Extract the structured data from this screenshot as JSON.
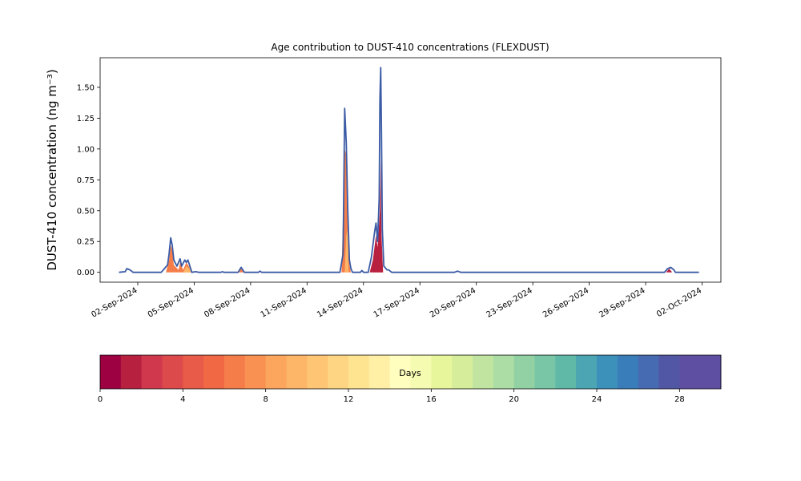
{
  "chart_data": {
    "type": "area",
    "title": "Age contribution to DUST-410 concentrations (FLEXDUST)",
    "ylabel": "DUST-410 concentration (ng m⁻³)",
    "xlabel": "",
    "ylim": [
      -0.08,
      1.74
    ],
    "y_ticks": [
      "0.00",
      "0.25",
      "0.50",
      "0.75",
      "1.00",
      "1.25",
      "1.50"
    ],
    "x_ticks": [
      "02-Sep-2024",
      "05-Sep-2024",
      "08-Sep-2024",
      "11-Sep-2024",
      "14-Sep-2024",
      "17-Sep-2024",
      "20-Sep-2024",
      "23-Sep-2024",
      "26-Sep-2024",
      "29-Sep-2024",
      "02-Oct-2024"
    ],
    "x_range": [
      "2024-08-31T00:00",
      "2024-10-03T00:00"
    ],
    "grid": false,
    "total_series": {
      "name": "",
      "color": "#3b5ba5",
      "points": [
        [
          "2024-09-01T00:00",
          0.0
        ],
        [
          "2024-09-01T08:00",
          0.005
        ],
        [
          "2024-09-01T10:00",
          0.03
        ],
        [
          "2024-09-01T14:00",
          0.02
        ],
        [
          "2024-09-01T18:00",
          0.0
        ],
        [
          "2024-09-03T06:00",
          0.0
        ],
        [
          "2024-09-03T14:00",
          0.06
        ],
        [
          "2024-09-03T16:00",
          0.15
        ],
        [
          "2024-09-03T18:00",
          0.28
        ],
        [
          "2024-09-03T20:00",
          0.22
        ],
        [
          "2024-09-03T22:00",
          0.1
        ],
        [
          "2024-09-04T02:00",
          0.05
        ],
        [
          "2024-09-04T06:00",
          0.11
        ],
        [
          "2024-09-04T08:00",
          0.05
        ],
        [
          "2024-09-04T12:00",
          0.1
        ],
        [
          "2024-09-04T14:00",
          0.08
        ],
        [
          "2024-09-04T16:00",
          0.1
        ],
        [
          "2024-09-04T18:00",
          0.06
        ],
        [
          "2024-09-04T21:00",
          0.0
        ],
        [
          "2024-09-05T02:00",
          0.005
        ],
        [
          "2024-09-05T06:00",
          0.0
        ],
        [
          "2024-09-06T10:00",
          0.0
        ],
        [
          "2024-09-06T12:00",
          0.005
        ],
        [
          "2024-09-06T14:00",
          0.0
        ],
        [
          "2024-09-07T08:00",
          0.0
        ],
        [
          "2024-09-07T12:00",
          0.04
        ],
        [
          "2024-09-07T16:00",
          0.0
        ],
        [
          "2024-09-08T10:00",
          0.0
        ],
        [
          "2024-09-08T12:00",
          0.01
        ],
        [
          "2024-09-08T14:00",
          0.0
        ],
        [
          "2024-09-12T18:00",
          0.0
        ],
        [
          "2024-09-12T22:00",
          0.15
        ],
        [
          "2024-09-13T00:00",
          1.33
        ],
        [
          "2024-09-13T02:00",
          1.05
        ],
        [
          "2024-09-13T04:00",
          0.5
        ],
        [
          "2024-09-13T06:00",
          0.1
        ],
        [
          "2024-09-13T08:00",
          0.03
        ],
        [
          "2024-09-13T10:00",
          0.0
        ],
        [
          "2024-09-13T20:00",
          0.0
        ],
        [
          "2024-09-13T22:00",
          0.015
        ],
        [
          "2024-09-14T00:00",
          0.0
        ],
        [
          "2024-09-14T06:00",
          0.0
        ],
        [
          "2024-09-14T10:00",
          0.12
        ],
        [
          "2024-09-14T14:00",
          0.32
        ],
        [
          "2024-09-14T16:00",
          0.4
        ],
        [
          "2024-09-14T18:00",
          0.25
        ],
        [
          "2024-09-14T20:00",
          0.6
        ],
        [
          "2024-09-14T21:00",
          1.4
        ],
        [
          "2024-09-14T22:00",
          1.66
        ],
        [
          "2024-09-14T23:00",
          1.1
        ],
        [
          "2024-09-15T00:00",
          0.35
        ],
        [
          "2024-09-15T02:00",
          0.05
        ],
        [
          "2024-09-15T06:00",
          0.02
        ],
        [
          "2024-09-15T08:00",
          0.02
        ],
        [
          "2024-09-15T12:00",
          0.0
        ],
        [
          "2024-09-16T00:00",
          0.0
        ],
        [
          "2024-09-18T20:00",
          0.0
        ],
        [
          "2024-09-19T00:00",
          0.01
        ],
        [
          "2024-09-19T04:00",
          0.0
        ],
        [
          "2024-09-30T00:00",
          0.0
        ],
        [
          "2024-09-30T04:00",
          0.03
        ],
        [
          "2024-09-30T08:00",
          0.04
        ],
        [
          "2024-09-30T12:00",
          0.02
        ],
        [
          "2024-09-30T14:00",
          0.0
        ],
        [
          "2024-10-01T20:00",
          0.0
        ]
      ]
    },
    "age_fills": [
      {
        "age_days": 6,
        "points": [
          [
            "2024-09-03T12:00",
            0.0
          ],
          [
            "2024-09-03T16:00",
            0.1
          ],
          [
            "2024-09-03T18:00",
            0.22
          ],
          [
            "2024-09-03T20:00",
            0.18
          ],
          [
            "2024-09-03T22:00",
            0.06
          ],
          [
            "2024-09-04T04:00",
            0.02
          ],
          [
            "2024-09-04T06:00",
            0.08
          ],
          [
            "2024-09-04T10:00",
            0.02
          ],
          [
            "2024-09-04T14:00",
            0.08
          ],
          [
            "2024-09-04T18:00",
            0.04
          ],
          [
            "2024-09-04T20:00",
            0.0
          ]
        ]
      },
      {
        "age_days": 9,
        "points": [
          [
            "2024-09-04T10:00",
            0.0
          ],
          [
            "2024-09-04T14:00",
            0.05
          ],
          [
            "2024-09-04T18:00",
            0.03
          ],
          [
            "2024-09-04T20:00",
            0.0
          ]
        ]
      },
      {
        "age_days": 6,
        "points": [
          [
            "2024-09-07T09:00",
            0.0
          ],
          [
            "2024-09-07T12:00",
            0.03
          ],
          [
            "2024-09-07T15:00",
            0.0
          ]
        ]
      },
      {
        "age_days": 6,
        "points": [
          [
            "2024-09-12T20:00",
            0.0
          ],
          [
            "2024-09-13T00:00",
            1.0
          ],
          [
            "2024-09-13T02:00",
            0.95
          ],
          [
            "2024-09-13T04:00",
            0.45
          ],
          [
            "2024-09-13T06:00",
            0.06
          ],
          [
            "2024-09-13T08:00",
            0.0
          ]
        ]
      },
      {
        "age_days": 9,
        "points": [
          [
            "2024-09-13T00:00",
            0.0
          ],
          [
            "2024-09-13T02:00",
            0.3
          ],
          [
            "2024-09-13T04:00",
            0.35
          ],
          [
            "2024-09-13T05:00",
            0.0
          ]
        ]
      },
      {
        "age_days": 5,
        "points": [
          [
            "2024-09-14T12:00",
            0.0
          ],
          [
            "2024-09-14T16:00",
            0.12
          ],
          [
            "2024-09-14T20:00",
            0.3
          ],
          [
            "2024-09-14T22:00",
            0.4
          ],
          [
            "2024-09-15T00:00",
            0.0
          ]
        ]
      },
      {
        "age_days": 1,
        "points": [
          [
            "2024-09-14T08:00",
            0.0
          ],
          [
            "2024-09-14T12:00",
            0.1
          ],
          [
            "2024-09-14T16:00",
            0.3
          ],
          [
            "2024-09-14T18:00",
            0.2
          ],
          [
            "2024-09-14T21:00",
            0.5
          ],
          [
            "2024-09-14T22:00",
            0.92
          ],
          [
            "2024-09-14T23:00",
            0.3
          ],
          [
            "2024-09-15T01:00",
            0.0
          ]
        ]
      },
      {
        "age_days": 1,
        "points": [
          [
            "2024-09-30T02:00",
            0.0
          ],
          [
            "2024-09-30T06:00",
            0.03
          ],
          [
            "2024-09-30T10:00",
            0.0
          ]
        ]
      }
    ],
    "colorbar": {
      "label": "Days",
      "range": [
        0,
        30
      ],
      "n_bins": 30,
      "tick_values": [
        0,
        4,
        8,
        12,
        16,
        20,
        24,
        28
      ],
      "tick_labels": [
        "0",
        "4",
        "8",
        "12",
        "16",
        "20",
        "24",
        "28"
      ],
      "colors": [
        "#9e0142",
        "#b8203f",
        "#d0384e",
        "#dc4a4c",
        "#e85b48",
        "#f06844",
        "#f57d4a",
        "#f99153",
        "#fca55d",
        "#fdb567",
        "#fec575",
        "#fed683",
        "#fee391",
        "#fff0a5",
        "#fffebe",
        "#f5fbb0",
        "#e8f69b",
        "#d6ee9b",
        "#c1e5a0",
        "#abdda4",
        "#92d1a3",
        "#78c6a5",
        "#5fb9a6",
        "#4ba5b2",
        "#3c91bb",
        "#3a7dbb",
        "#466bb2",
        "#5157a5",
        "#5e4fa2",
        "#5e4fa2"
      ]
    }
  }
}
